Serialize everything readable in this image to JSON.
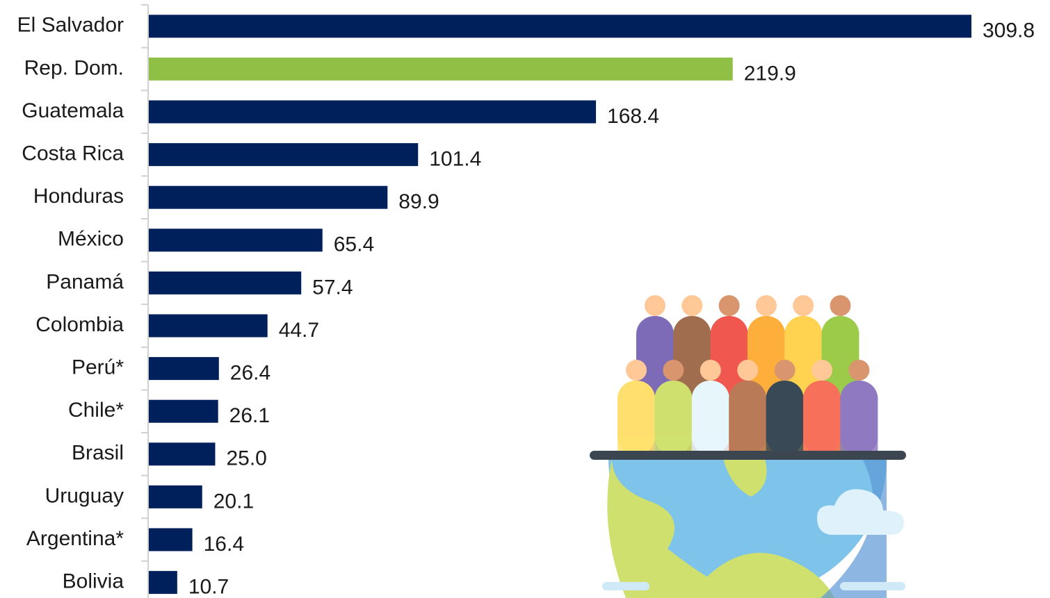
{
  "chart_data": {
    "type": "hbar",
    "categories": [
      "El Salvador",
      "Rep. Dom.",
      "Guatemala",
      "Costa Rica",
      "Honduras",
      "México",
      "Panamá",
      "Colombia",
      "Perú*",
      "Chile*",
      "Brasil",
      "Uruguay",
      "Argentina*",
      "Bolivia"
    ],
    "values": [
      309.8,
      219.9,
      168.4,
      101.4,
      89.9,
      65.4,
      57.4,
      44.7,
      26.4,
      26.1,
      25.0,
      20.1,
      16.4,
      10.7
    ],
    "value_labels": [
      "309.8",
      "219.9",
      "168.4",
      "101.4",
      "89.9",
      "65.4",
      "57.4",
      "44.7",
      "26.4",
      "26.1",
      "25.0",
      "20.1",
      "16.4",
      "10.7"
    ],
    "colors": [
      "#00205b",
      "#8fbf45",
      "#00205b",
      "#00205b",
      "#00205b",
      "#00205b",
      "#00205b",
      "#00205b",
      "#00205b",
      "#00205b",
      "#00205b",
      "#00205b",
      "#00205b",
      "#00205b"
    ]
  }
}
